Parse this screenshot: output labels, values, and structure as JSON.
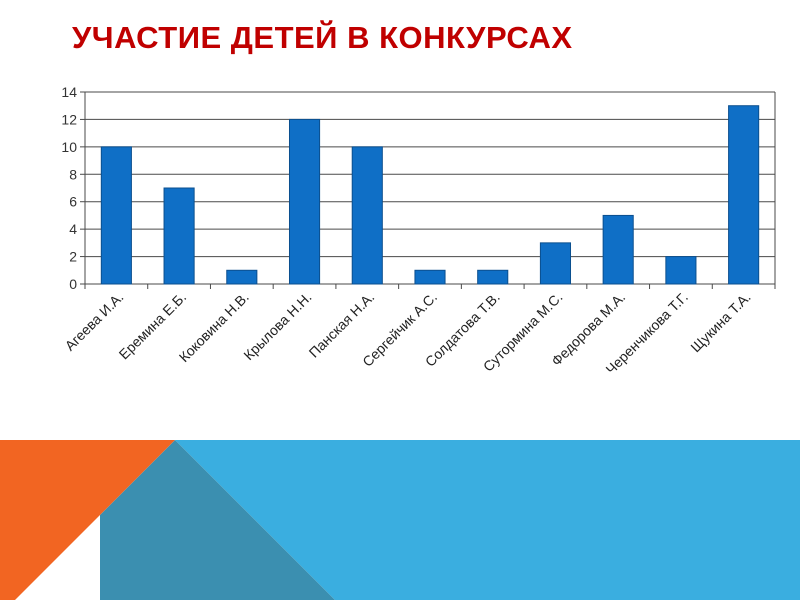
{
  "slide": {
    "title": "УЧАСТИЕ ДЕТЕЙ В КОНКУРСАХ",
    "title_color": "#c00000"
  },
  "chart_data": {
    "type": "bar",
    "title": "",
    "xlabel": "",
    "ylabel": "",
    "categories": [
      "Агеева И.А.",
      "Еремина Е.Б.",
      "Коковина Н.В.",
      "Крылова Н.Н.",
      "Панская Н.А.",
      "Сергейчик А.С.",
      "Солдатова Т.В.",
      "Сутормина М.С.",
      "Федорова М.А.",
      "Черенчикова Т.Г.",
      "Щукина Т.А."
    ],
    "values": [
      10,
      7,
      1,
      12,
      10,
      1,
      1,
      3,
      5,
      2,
      13
    ],
    "ylim": [
      0,
      14
    ],
    "yticks": [
      0,
      2,
      4,
      6,
      8,
      10,
      12,
      14
    ],
    "grid": true,
    "legend": "none",
    "bar_color": "#0f6fc6"
  },
  "decor": {
    "band_blue": "#3aaee0",
    "band_teal": "#3b8fb0",
    "band_orange": "#f26522"
  }
}
